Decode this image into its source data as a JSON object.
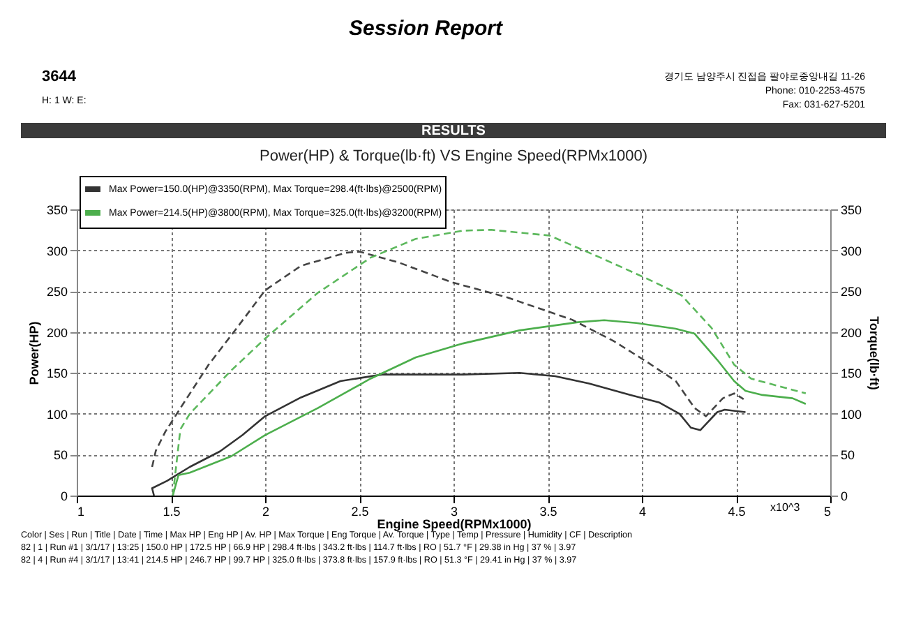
{
  "chart_data": {
    "type": "line",
    "title": "Power(HP) & Torque(lb·ft) VS Engine Speed(RPMx1000)",
    "subtitle": "RESULTS",
    "xlabel": "Engine Speed(RPMx1000)",
    "ylabel": "Power(HP)",
    "y2label": "Torque(lb·ft)",
    "annotations": [
      "Session Report",
      "3644",
      "H: 1   W:      E:",
      "경기도 남양주시 진접읍 팔야로중앙내길 11-26",
      "Phone: 010-2253-4575",
      "Fax:     031-627-5201",
      "x10^3",
      "Color | Ses | Run | Title | Date | Time | Max HP | Eng HP | Av. HP | Max Torque | Eng Torque | Av. Torque | Type | Temp | Pressure | Humidity | CF | Description",
      "82 | 1 | Run #1 | 3/1/17 | 13:25 | 150.0 HP | 172.5 HP | 66.9 HP | 298.4 ft·lbs | 343.2 ft·lbs | 114.7 ft·lbs | RO | 51.7 °F | 29.38 in Hg | 37 % | 3.97",
      "82 | 4 | Run #4 | 3/1/17 | 13:41 | 214.5 HP | 246.7 HP | 99.7 HP | 325.0 ft·lbs | 373.8 ft·lbs | 157.9 ft·lbs | RO | 51.3 °F | 29.41 in Hg | 37 % | 3.97"
    ],
    "xlim": [
      1,
      5
    ],
    "xticks": [
      1,
      1.5,
      2,
      2.5,
      3,
      3.5,
      4,
      4.5,
      5
    ],
    "ylim": [
      0,
      350
    ],
    "yticks": [
      0,
      50,
      100,
      150,
      200,
      250,
      300,
      350
    ],
    "y2lim": [
      0,
      350
    ],
    "y2ticks": [
      0,
      50,
      100,
      150,
      200,
      250,
      300,
      350
    ],
    "grid": true,
    "legend": "top left",
    "marker": "none",
    "series": [
      {
        "name": "Max Power=150.0(HP)@3350(RPM), Max Torque=298.4(ft·lbs)@2500(RPM)",
        "color": "#333333",
        "line_style": "solid",
        "x": [
          1.41,
          1.4,
          1.48,
          1.6,
          1.76,
          1.88,
          2.0,
          2.19,
          2.4,
          2.62,
          3.05,
          3.35,
          3.54,
          3.72,
          3.94,
          4.09,
          4.2,
          4.26,
          4.31,
          4.4,
          4.44,
          4.55
        ],
        "values": [
          0,
          9,
          18,
          35,
          54,
          74,
          97,
          120,
          140,
          148,
          148,
          150,
          146,
          137,
          123,
          114,
          100,
          83,
          80,
          102,
          105,
          102
        ]
      },
      {
        "color": "#444444",
        "line_style": "dashed",
        "axis": "y2",
        "x": [
          1.4,
          1.42,
          1.47,
          1.57,
          1.7,
          1.85,
          2.0,
          2.19,
          2.43,
          2.5,
          2.71,
          2.99,
          3.29,
          3.63,
          3.85,
          4.03,
          4.18,
          4.28,
          4.34,
          4.43,
          4.49,
          4.54
        ],
        "values": [
          35,
          55,
          78,
          114,
          160,
          205,
          251,
          281,
          297,
          298.4,
          285,
          261,
          242,
          215,
          189,
          163,
          140,
          107,
          97,
          119,
          125,
          118
        ]
      },
      {
        "name": "Max Power=214.5(HP)@3800(RPM), Max Torque=325.0(ft·lbs)@3200(RPM)",
        "color": "#4cae4c",
        "line_style": "solid",
        "x": [
          1.51,
          1.54,
          1.6,
          1.82,
          2.0,
          2.28,
          2.56,
          2.8,
          3.05,
          3.35,
          3.66,
          3.8,
          3.97,
          4.18,
          4.28,
          4.4,
          4.49,
          4.55,
          4.64,
          4.8,
          4.87
        ],
        "values": [
          0,
          25,
          28,
          48,
          74,
          107,
          143,
          169,
          186,
          202,
          212,
          214.5,
          211,
          204,
          198,
          166,
          140,
          128,
          123,
          119,
          112
        ]
      },
      {
        "color": "#5cb85c",
        "line_style": "dashed",
        "axis": "y2",
        "x": [
          1.51,
          1.55,
          1.6,
          1.82,
          2.0,
          2.28,
          2.56,
          2.8,
          3.05,
          3.2,
          3.51,
          3.78,
          4.03,
          4.21,
          4.37,
          4.49,
          4.58,
          4.74,
          4.87
        ],
        "values": [
          0,
          81,
          100,
          153,
          192,
          248,
          291,
          314,
          324,
          325,
          318,
          291,
          265,
          245,
          205,
          160,
          143,
          133,
          125
        ]
      }
    ]
  }
}
